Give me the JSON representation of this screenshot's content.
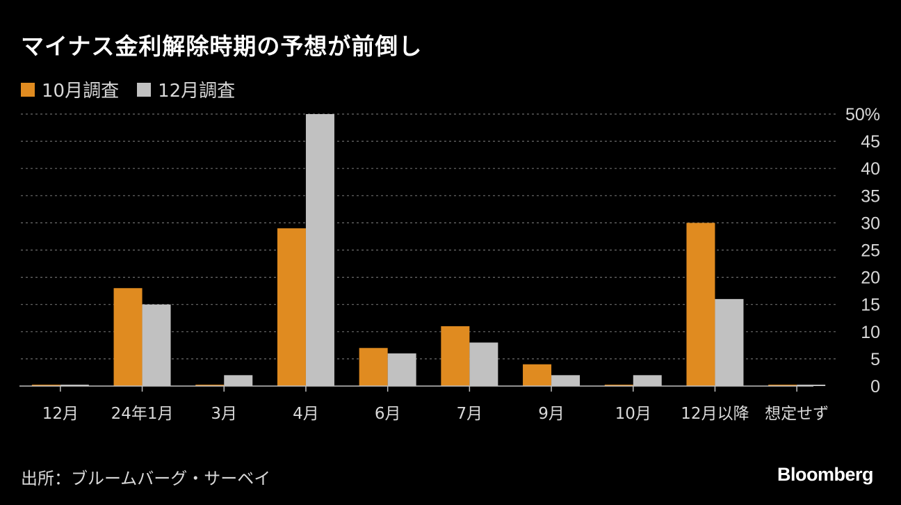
{
  "title": "マイナス金利解除時期の予想が前倒し",
  "legend": [
    {
      "label": "10月調査",
      "color": "#e08b20"
    },
    {
      "label": "12月調査",
      "color": "#c1c1c1"
    }
  ],
  "source": "出所：ブルームバーグ・サーベイ",
  "brand": "Bloomberg",
  "chart_data": {
    "type": "bar",
    "categories": [
      "12月",
      "24年1月",
      "3月",
      "4月",
      "6月",
      "7月",
      "9月",
      "10月",
      "12月以降",
      "想定せず"
    ],
    "series": [
      {
        "name": "10月調査",
        "values": [
          0,
          18,
          0,
          29,
          7,
          11,
          4,
          0,
          30,
          0
        ],
        "color": "#e08b20"
      },
      {
        "name": "12月調査",
        "values": [
          0,
          15,
          2,
          50,
          6,
          8,
          2,
          2,
          16,
          0
        ],
        "color": "#c1c1c1"
      }
    ],
    "ylim": [
      0,
      50
    ],
    "yticks": [
      "0",
      "5",
      "10",
      "15",
      "20",
      "25",
      "30",
      "35",
      "40",
      "45",
      "50%"
    ],
    "grid": true,
    "y_axis_position": "right",
    "legend_position": "top-left"
  }
}
